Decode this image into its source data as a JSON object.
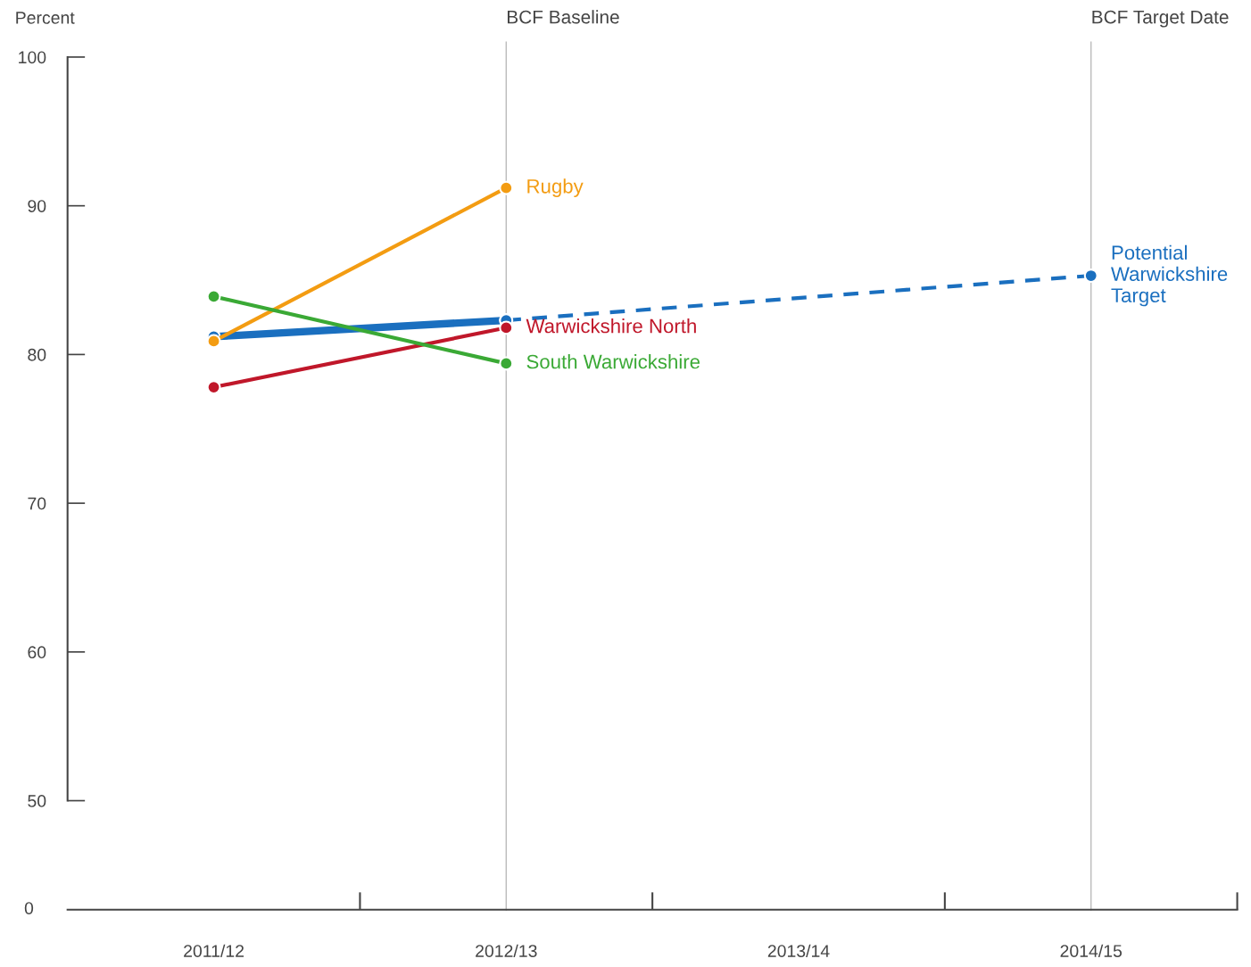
{
  "chart_data": {
    "type": "line",
    "ylabel": "Percent",
    "categories": [
      "2011/12",
      "2012/13",
      "2013/14",
      "2014/15"
    ],
    "series": [
      {
        "color": "#1a6fbf",
        "values": [
          81.2,
          82.3,
          null,
          null
        ]
      },
      {
        "name": "Potential\nWarwickshire\nTarget",
        "color": "#1a6fbf",
        "values": [
          null,
          82.3,
          null,
          85.3
        ],
        "line_style": "dashed"
      },
      {
        "name": "Rugby",
        "color": "#f39c12",
        "values": [
          80.9,
          91.2,
          null,
          null
        ]
      },
      {
        "name": "Warwickshire North",
        "color": "#c0172a",
        "values": [
          77.8,
          81.8,
          null,
          null
        ]
      },
      {
        "name": "South Warwickshire",
        "color": "#3aa935",
        "values": [
          83.9,
          79.4,
          null,
          null
        ]
      }
    ],
    "ylim": [
      50,
      100
    ],
    "yticks": [
      50,
      60,
      70,
      80,
      90,
      100
    ],
    "ref_lines": [
      {
        "axis": "x",
        "value": "2012/13",
        "label": "BCF Baseline",
        "color": "#bbbbbb"
      },
      {
        "axis": "x",
        "value": "2014/15",
        "label": "BCF Target Date",
        "color": "#bbbbbb"
      }
    ],
    "annotations": [
      "0"
    ],
    "marker": "circle",
    "line_style": "solid",
    "grid": false,
    "legend": false
  }
}
